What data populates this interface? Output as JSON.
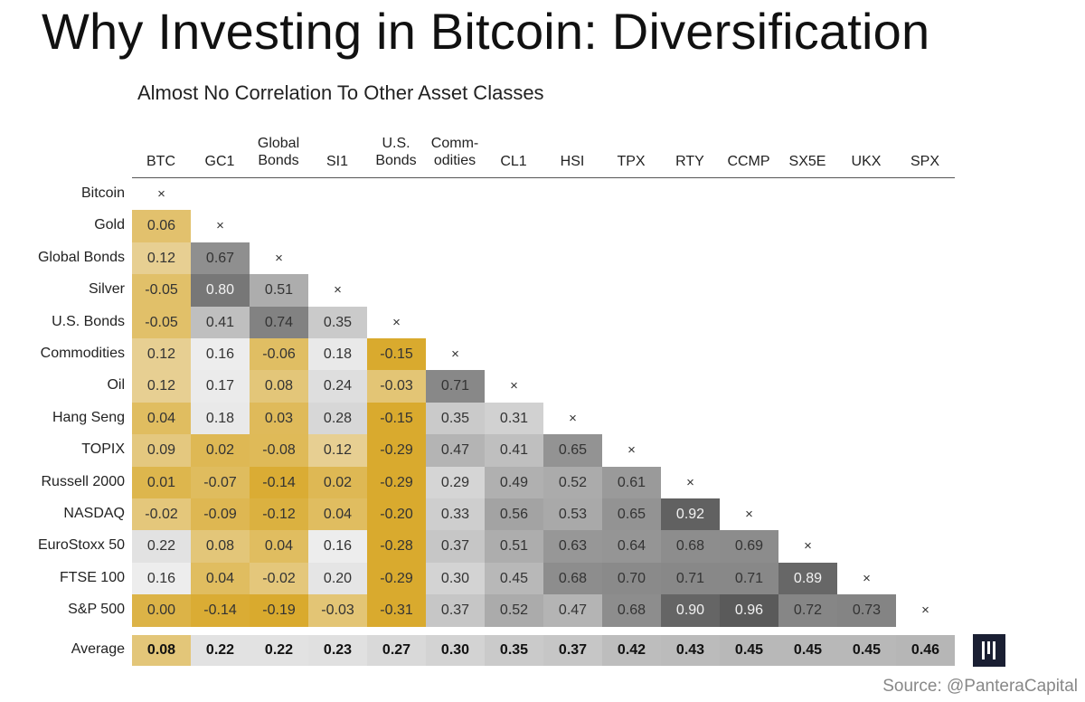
{
  "title": "Why Investing in Bitcoin: Diversification",
  "source": "Source: @PanteraCapital",
  "chart_data": {
    "type": "heatmap",
    "title": "Almost No Correlation To Other Asset Classes",
    "columns": [
      [
        "BTC"
      ],
      [
        "GC1"
      ],
      [
        "Global",
        "Bonds"
      ],
      [
        "SI1"
      ],
      [
        "U.S.",
        "Bonds"
      ],
      [
        "Comm-",
        "odities"
      ],
      [
        "CL1"
      ],
      [
        "HSI"
      ],
      [
        "TPX"
      ],
      [
        "RTY"
      ],
      [
        "CCMP"
      ],
      [
        "SX5E"
      ],
      [
        "UKX"
      ],
      [
        "SPX"
      ]
    ],
    "rows": [
      "Bitcoin",
      "Gold",
      "Global Bonds",
      "Silver",
      "U.S. Bonds",
      "Commodities",
      "Oil",
      "Hang Seng",
      "TOPIX",
      "Russell 2000",
      "NASDAQ",
      "EuroStoxx 50",
      "FTSE 100",
      "S&P 500"
    ],
    "diagonal_marker": "×",
    "values": [
      [],
      [
        "0.06"
      ],
      [
        "0.12",
        "0.67"
      ],
      [
        "-0.05",
        "0.80",
        "0.51"
      ],
      [
        "-0.05",
        "0.41",
        "0.74",
        "0.35"
      ],
      [
        "0.12",
        "0.16",
        "-0.06",
        "0.18",
        "-0.15"
      ],
      [
        "0.12",
        "0.17",
        "0.08",
        "0.24",
        "-0.03",
        "0.71"
      ],
      [
        "0.04",
        "0.18",
        "0.03",
        "0.28",
        "-0.15",
        "0.35",
        "0.31"
      ],
      [
        "0.09",
        "0.02",
        "-0.08",
        "0.12",
        "-0.29",
        "0.47",
        "0.41",
        "0.65"
      ],
      [
        "0.01",
        "-0.07",
        "-0.14",
        "0.02",
        "-0.29",
        "0.29",
        "0.49",
        "0.52",
        "0.61"
      ],
      [
        "-0.02",
        "-0.09",
        "-0.12",
        "0.04",
        "-0.20",
        "0.33",
        "0.56",
        "0.53",
        "0.65",
        "0.92"
      ],
      [
        "0.22",
        "0.08",
        "0.04",
        "0.16",
        "-0.28",
        "0.37",
        "0.51",
        "0.63",
        "0.64",
        "0.68",
        "0.69"
      ],
      [
        "0.16",
        "0.04",
        "-0.02",
        "0.20",
        "-0.29",
        "0.30",
        "0.45",
        "0.68",
        "0.70",
        "0.71",
        "0.71",
        "0.89"
      ],
      [
        "0.00",
        "-0.14",
        "-0.19",
        "-0.03",
        "-0.31",
        "0.37",
        "0.52",
        "0.47",
        "0.68",
        "0.90",
        "0.96",
        "0.72",
        "0.73"
      ]
    ],
    "average_label": "Average",
    "averages": [
      "0.08",
      "0.22",
      "0.22",
      "0.23",
      "0.27",
      "0.30",
      "0.35",
      "0.37",
      "0.42",
      "0.43",
      "0.45",
      "0.45",
      "0.45",
      "0.46"
    ],
    "color_scale": {
      "negative": "#d9aa2e",
      "zero": "#f4f4f4",
      "positive": "#5a5a5a"
    }
  }
}
